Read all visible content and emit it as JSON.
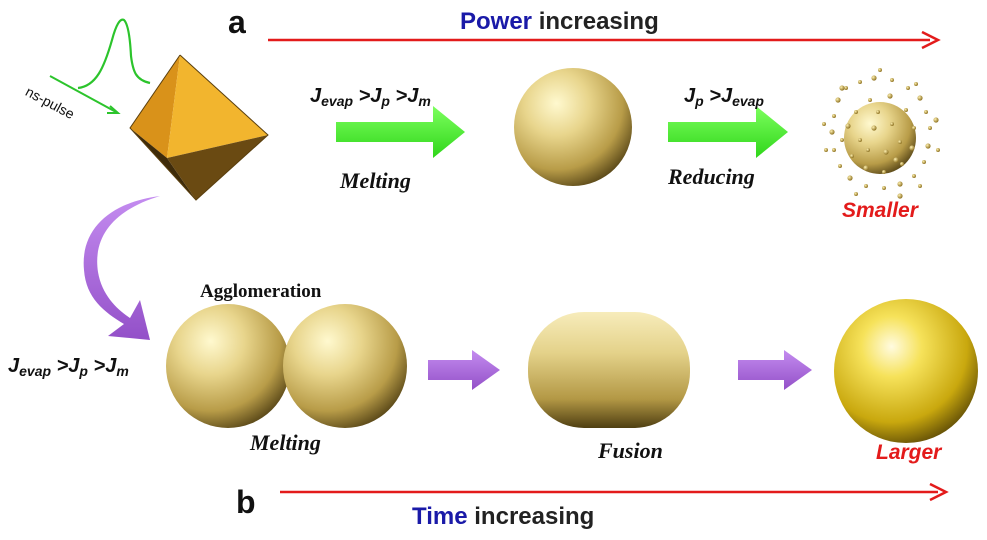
{
  "panel_a": {
    "label": "a",
    "heading_highlight": "Power",
    "heading_rest": "increasing",
    "pulse_label": "ns-pulse",
    "condition_1": {
      "J1": "J",
      "s1": "evap",
      "J2": "J",
      "s2": "p",
      "J3": "J",
      "s3": "m"
    },
    "step_1": "Melting",
    "condition_2": {
      "J1": "J",
      "s1": "p",
      "J2": "J",
      "s2": "evap"
    },
    "step_2": "Reducing",
    "result": "Smaller"
  },
  "panel_b": {
    "label": "b",
    "heading_highlight": "Time",
    "heading_rest": "increasing",
    "condition": {
      "J1": "J",
      "s1": "evap",
      "J2": "J",
      "s2": "p",
      "J3": "J",
      "s3": "m"
    },
    "agglomeration": "Agglomeration",
    "step_1": "Melting",
    "step_2": "Fusion",
    "result": "Larger"
  },
  "colors": {
    "power_arrow": "#e31b1b",
    "green_arrow": "#44ee2a",
    "purple_arrow": "#a65fd6",
    "gold_light": "#fff7c4",
    "gold_mid": "#d9c277",
    "gold_dark": "#5c4a16",
    "octahedron": "#e6a020",
    "heading_blue": "#1a1aa8",
    "result_red": "#e31b1b",
    "pulse_green": "#2cc42c"
  }
}
